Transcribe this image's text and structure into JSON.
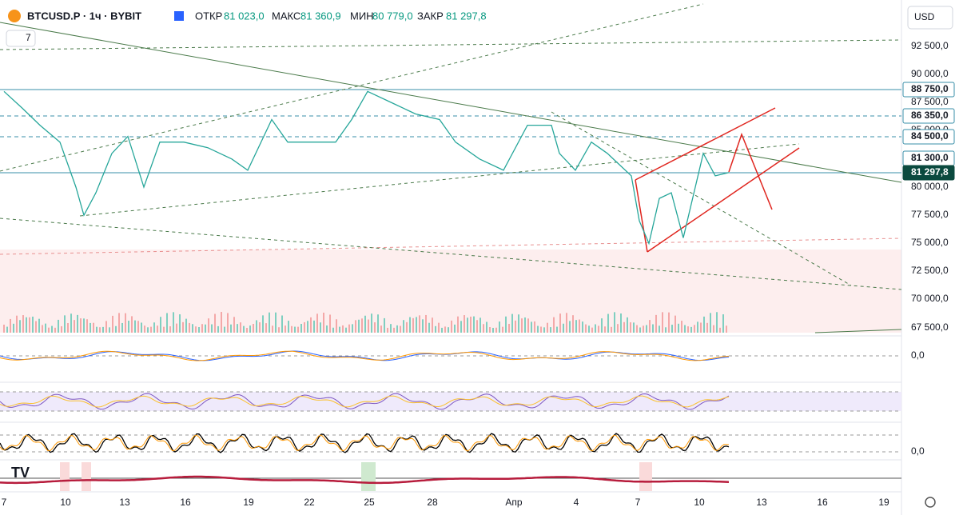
{
  "header": {
    "symbol": "BTCUSD.P · 1ч · BYBIT",
    "open_label": "ОТКР",
    "open": "81 023,0",
    "high_label": "МАКС",
    "high": "81 360,9",
    "low_label": "МИН",
    "low": "80 779,0",
    "close_label": "ЗАКР",
    "close": "81 297,8",
    "indicator_count": "7"
  },
  "currency": "USD",
  "price_axis": {
    "ticks": [
      "92 500,0",
      "90 000,0",
      "87 500,0",
      "85 000,0",
      "80 000,0",
      "77 500,0",
      "75 000,0",
      "72 500,0",
      "70 000,0",
      "67 500,0"
    ],
    "badges": [
      "88 750,0",
      "86 350,0",
      "84 500,0",
      "81 300,0",
      "81 297,8"
    ]
  },
  "indicator_axis": {
    "labels": [
      "0,0",
      "0,0"
    ]
  },
  "date_axis": [
    "7",
    "10",
    "13",
    "16",
    "19",
    "22",
    "25",
    "28",
    "Апр",
    "4",
    "7",
    "10",
    "13",
    "16",
    "19"
  ],
  "price_line": {
    "values": [
      88500,
      87000,
      85500,
      84000,
      80000,
      77500,
      79500,
      83000,
      84500,
      80000,
      84000,
      84000,
      83500,
      82500,
      81500,
      86000,
      84000,
      84000,
      84000,
      86000,
      88500,
      87500,
      86500,
      86000,
      84000,
      82500,
      81500,
      85500,
      85500,
      83000,
      81500,
      84000,
      83000,
      81000,
      77000,
      75000,
      79000,
      79500,
      75500,
      80000,
      83000,
      81000,
      81300
    ]
  }
}
